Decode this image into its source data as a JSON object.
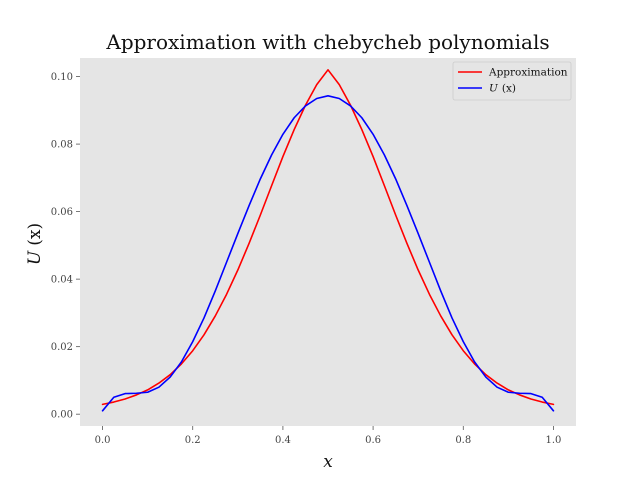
{
  "chart_data": {
    "type": "line",
    "title": "Approximation with chebycheb polynomials",
    "xlabel": "x",
    "ylabel_italic": "U",
    "ylabel_rest": "(x)",
    "xlim": [
      -0.05,
      1.05
    ],
    "ylim": [
      -0.0035,
      0.1055
    ],
    "x_ticks": [
      0.0,
      0.2,
      0.4,
      0.6,
      0.8,
      1.0
    ],
    "x_tick_labels": [
      "0.0",
      "0.2",
      "0.4",
      "0.6",
      "0.8",
      "1.0"
    ],
    "y_ticks": [
      0.0,
      0.02,
      0.04,
      0.06,
      0.08,
      0.1
    ],
    "y_tick_labels": [
      "0.00",
      "0.02",
      "0.04",
      "0.06",
      "0.08",
      "0.10"
    ],
    "grid": false,
    "legend_position": "top-right",
    "background": "#e5e5e5",
    "x": [
      0.0,
      0.025,
      0.05,
      0.075,
      0.1,
      0.125,
      0.15,
      0.175,
      0.2,
      0.225,
      0.25,
      0.275,
      0.3,
      0.325,
      0.35,
      0.375,
      0.4,
      0.425,
      0.45,
      0.475,
      0.5,
      0.525,
      0.55,
      0.575,
      0.6,
      0.625,
      0.65,
      0.675,
      0.7,
      0.725,
      0.75,
      0.775,
      0.8,
      0.825,
      0.85,
      0.875,
      0.9,
      0.925,
      0.95,
      0.975,
      1.0
    ],
    "series": [
      {
        "name": "Approximation",
        "color": "#ff0000",
        "values": [
          0.0029,
          0.0036,
          0.0045,
          0.0057,
          0.0072,
          0.0092,
          0.0117,
          0.0149,
          0.0188,
          0.0235,
          0.0291,
          0.0355,
          0.0427,
          0.0506,
          0.059,
          0.0677,
          0.0763,
          0.0843,
          0.0915,
          0.0976,
          0.102,
          0.0976,
          0.0915,
          0.0843,
          0.0763,
          0.0677,
          0.059,
          0.0506,
          0.0427,
          0.0355,
          0.0291,
          0.0235,
          0.0188,
          0.0149,
          0.0117,
          0.0092,
          0.0072,
          0.0057,
          0.0045,
          0.0036,
          0.0029
        ]
      },
      {
        "name_italic": "U",
        "name_rest": "(x)",
        "color": "#0000ff",
        "values": [
          0.001,
          0.005,
          0.0061,
          0.0062,
          0.0065,
          0.008,
          0.011,
          0.0155,
          0.0215,
          0.0285,
          0.0365,
          0.045,
          0.0535,
          0.0618,
          0.0697,
          0.0768,
          0.0829,
          0.0878,
          0.0913,
          0.0935,
          0.0943,
          0.0935,
          0.0913,
          0.0878,
          0.0829,
          0.0768,
          0.0697,
          0.0618,
          0.0535,
          0.045,
          0.0365,
          0.0285,
          0.0215,
          0.0155,
          0.011,
          0.008,
          0.0065,
          0.0062,
          0.0061,
          0.005,
          0.001
        ]
      }
    ]
  }
}
